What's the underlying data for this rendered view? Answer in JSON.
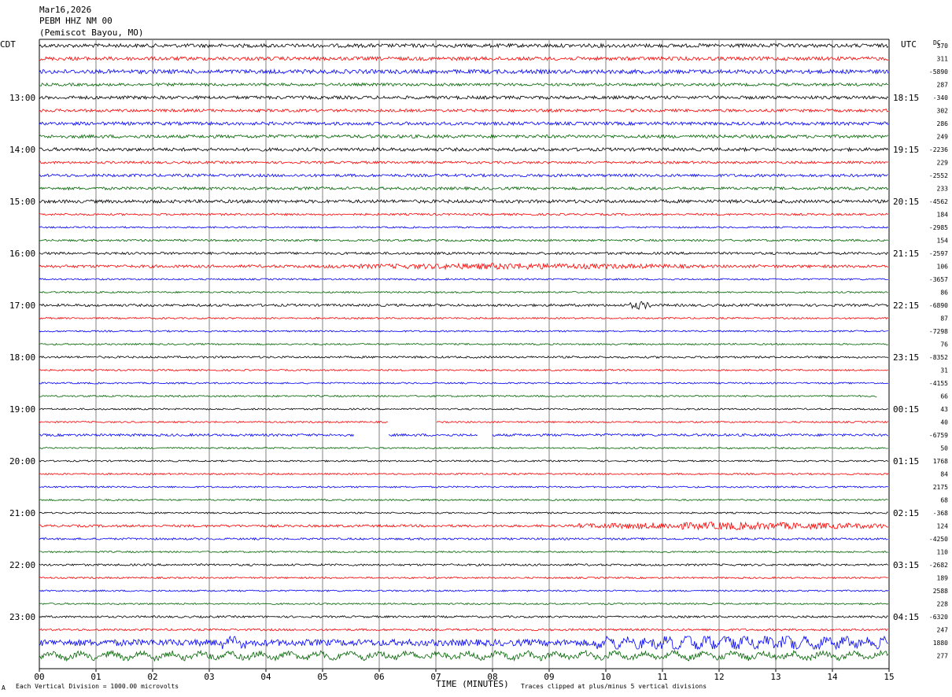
{
  "header": {
    "date": "Mar16,2026",
    "station": "PEBM HHZ NM 00",
    "location": "(Pemiscot Bayou, MO)"
  },
  "left_label": "CDT",
  "right_label": "UTC",
  "dc_label": "DC",
  "footer": {
    "scale_note": "Each Vertical Division = 1000.00 microvolts",
    "xlabel": "TIME (MINUTES)",
    "clip_note": "Traces clipped at plus/minus 5 vertical divisions",
    "corner_mark": "A"
  },
  "colors": {
    "trace_cycle": [
      "#000000",
      "#ff0000",
      "#0000ff",
      "#006400"
    ],
    "grid": "#808080"
  },
  "chart_data": {
    "type": "line",
    "title": "",
    "xlabel": "TIME (MINUTES)",
    "ylabel": "",
    "xlim": [
      0,
      15
    ],
    "x_ticks": [
      "00",
      "01",
      "02",
      "03",
      "04",
      "05",
      "06",
      "07",
      "08",
      "09",
      "10",
      "11",
      "12",
      "13",
      "14",
      "15"
    ],
    "left_hour_labels": [
      "13:00",
      "14:00",
      "15:00",
      "16:00",
      "17:00",
      "18:00",
      "19:00",
      "20:00",
      "21:00",
      "22:00",
      "23:00"
    ],
    "right_hour_labels": [
      "18:15",
      "19:15",
      "20:15",
      "21:15",
      "22:15",
      "23:15",
      "00:15",
      "01:15",
      "02:15",
      "03:15",
      "04:15"
    ],
    "row_count": 48,
    "dc_offsets": [
      "370",
      "311",
      "-5890",
      "287",
      "-340",
      "302",
      "286",
      "249",
      "-2236",
      "229",
      "-2552",
      "233",
      "-4562",
      "184",
      "-2985",
      "154",
      "-2597",
      "106",
      "-3657",
      "86",
      "-6890",
      "87",
      "-7298",
      "76",
      "-8352",
      "31",
      "-4155",
      "66",
      "43",
      "40",
      "-6759",
      "50",
      "1768",
      "84",
      "2175",
      "68",
      "-368",
      "124",
      "-4250",
      "110",
      "-2682",
      "189",
      "2588",
      "228",
      "-6320",
      "247",
      "1880",
      "277"
    ],
    "row_amplitude": [
      0.9,
      0.9,
      1.0,
      0.7,
      0.8,
      0.7,
      0.8,
      0.8,
      0.8,
      0.6,
      0.7,
      0.7,
      0.8,
      0.5,
      0.4,
      0.5,
      0.6,
      0.7,
      0.4,
      0.4,
      0.6,
      0.4,
      0.4,
      0.4,
      0.5,
      0.4,
      0.4,
      0.4,
      0.4,
      0.4,
      0.6,
      0.4,
      0.4,
      0.4,
      0.4,
      0.4,
      0.4,
      0.6,
      0.5,
      0.4,
      0.5,
      0.4,
      0.4,
      0.4,
      0.5,
      0.5,
      1.6,
      1.4
    ],
    "events": [
      {
        "row": 17,
        "x0": 5.0,
        "x1": 11.5,
        "amp": 1.6
      },
      {
        "row": 20,
        "x0": 10.4,
        "x1": 10.8,
        "amp": 2.2
      },
      {
        "row": 37,
        "x0": 9.5,
        "x1": 15.0,
        "amp": 2.0
      },
      {
        "row": 46,
        "x0": 3.2,
        "x1": 3.7,
        "amp": 3.0
      },
      {
        "row": 46,
        "x0": 9.8,
        "x1": 15.0,
        "amp": 3.4
      },
      {
        "row": 47,
        "x0": 0.0,
        "x1": 15.0,
        "amp": 1.2
      }
    ],
    "gaps": [
      {
        "row": 29,
        "x0": 6.15,
        "x1": 7.0
      },
      {
        "row": 30,
        "x0": 5.55,
        "x1": 6.15
      },
      {
        "row": 30,
        "x0": 7.75,
        "x1": 8.0
      },
      {
        "row": 27,
        "x0": 14.8,
        "x1": 15.0
      }
    ],
    "grid": true,
    "clip_divisions": 5
  }
}
